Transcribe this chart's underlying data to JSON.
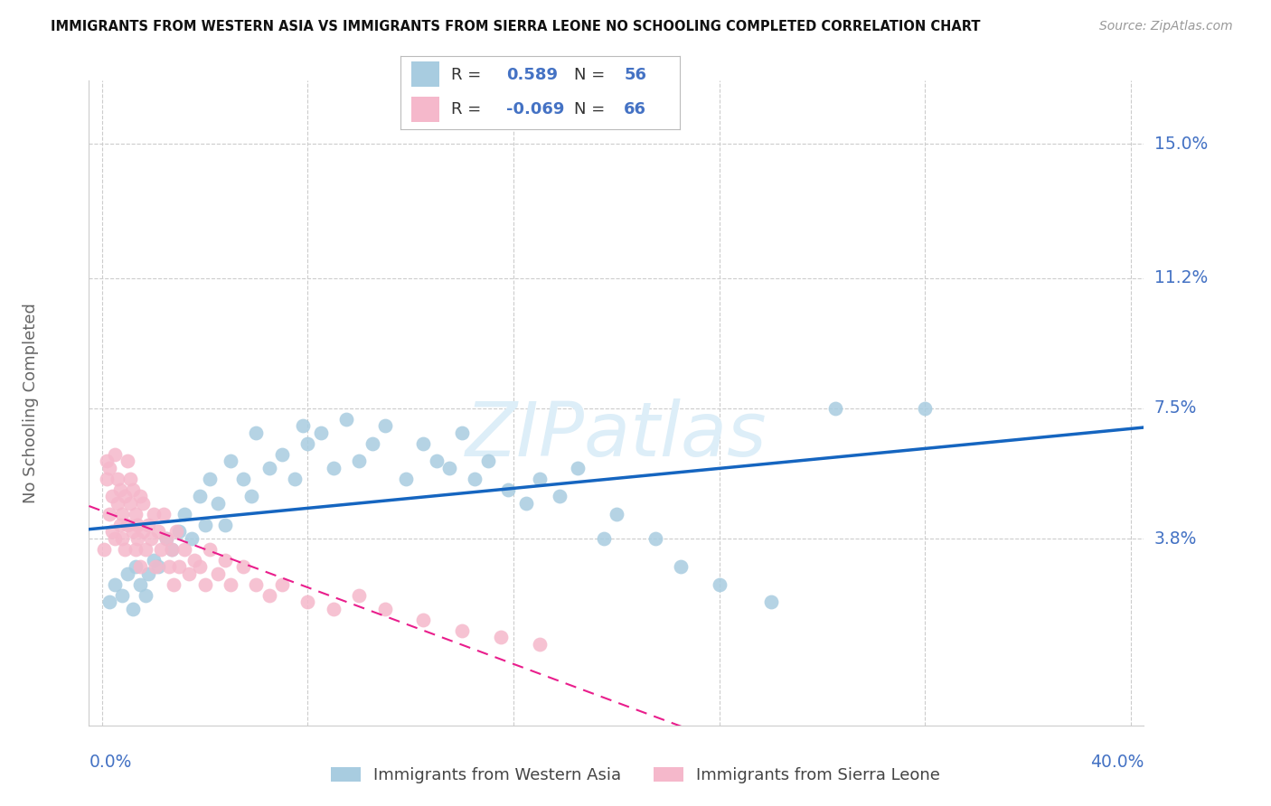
{
  "title": "IMMIGRANTS FROM WESTERN ASIA VS IMMIGRANTS FROM SIERRA LEONE NO SCHOOLING COMPLETED CORRELATION CHART",
  "source": "Source: ZipAtlas.com",
  "ylabel": "No Schooling Completed",
  "ytick_labels": [
    "15.0%",
    "11.2%",
    "7.5%",
    "3.8%"
  ],
  "ytick_values": [
    0.15,
    0.112,
    0.075,
    0.038
  ],
  "xlim": [
    0.0,
    0.4
  ],
  "ylim": [
    -0.015,
    0.168
  ],
  "color_blue": "#a8cce0",
  "color_pink": "#f5b8cb",
  "color_blue_line": "#1565c0",
  "color_pink_line": "#e91e8c",
  "color_grid": "#cccccc",
  "color_axis_label": "#4472c4",
  "color_ylabel": "#666666",
  "color_title": "#111111",
  "color_source": "#999999",
  "color_watermark": "#ddeef8",
  "legend_label1": "Immigrants from Western Asia",
  "legend_label2": "Immigrants from Sierra Leone",
  "legend_r1": "R =  0.589   N = 56",
  "legend_r2": "R = -0.069   N = 66",
  "wa_x": [
    0.003,
    0.005,
    0.008,
    0.01,
    0.012,
    0.013,
    0.015,
    0.017,
    0.018,
    0.02,
    0.022,
    0.025,
    0.027,
    0.03,
    0.032,
    0.035,
    0.038,
    0.04,
    0.042,
    0.045,
    0.048,
    0.05,
    0.055,
    0.058,
    0.06,
    0.065,
    0.07,
    0.075,
    0.078,
    0.08,
    0.085,
    0.09,
    0.095,
    0.1,
    0.105,
    0.11,
    0.118,
    0.125,
    0.13,
    0.135,
    0.14,
    0.145,
    0.15,
    0.158,
    0.165,
    0.17,
    0.178,
    0.185,
    0.195,
    0.2,
    0.215,
    0.225,
    0.24,
    0.26,
    0.285,
    0.32
  ],
  "wa_y": [
    0.02,
    0.025,
    0.022,
    0.028,
    0.018,
    0.03,
    0.025,
    0.022,
    0.028,
    0.032,
    0.03,
    0.038,
    0.035,
    0.04,
    0.045,
    0.038,
    0.05,
    0.042,
    0.055,
    0.048,
    0.042,
    0.06,
    0.055,
    0.05,
    0.068,
    0.058,
    0.062,
    0.055,
    0.07,
    0.065,
    0.068,
    0.058,
    0.072,
    0.06,
    0.065,
    0.07,
    0.055,
    0.065,
    0.06,
    0.058,
    0.068,
    0.055,
    0.06,
    0.052,
    0.048,
    0.055,
    0.05,
    0.058,
    0.038,
    0.045,
    0.038,
    0.03,
    0.025,
    0.02,
    0.075,
    0.075
  ],
  "sl_x": [
    0.001,
    0.002,
    0.002,
    0.003,
    0.003,
    0.004,
    0.004,
    0.005,
    0.005,
    0.006,
    0.006,
    0.007,
    0.007,
    0.008,
    0.008,
    0.009,
    0.009,
    0.01,
    0.01,
    0.011,
    0.011,
    0.012,
    0.012,
    0.013,
    0.013,
    0.014,
    0.014,
    0.015,
    0.015,
    0.016,
    0.016,
    0.017,
    0.018,
    0.019,
    0.02,
    0.021,
    0.022,
    0.023,
    0.024,
    0.025,
    0.026,
    0.027,
    0.028,
    0.029,
    0.03,
    0.032,
    0.034,
    0.036,
    0.038,
    0.04,
    0.042,
    0.045,
    0.048,
    0.05,
    0.055,
    0.06,
    0.065,
    0.07,
    0.08,
    0.09,
    0.1,
    0.11,
    0.125,
    0.14,
    0.155,
    0.17
  ],
  "sl_y": [
    0.035,
    0.055,
    0.06,
    0.045,
    0.058,
    0.04,
    0.05,
    0.062,
    0.038,
    0.048,
    0.055,
    0.042,
    0.052,
    0.038,
    0.045,
    0.05,
    0.035,
    0.06,
    0.042,
    0.055,
    0.048,
    0.04,
    0.052,
    0.035,
    0.045,
    0.038,
    0.042,
    0.05,
    0.03,
    0.04,
    0.048,
    0.035,
    0.042,
    0.038,
    0.045,
    0.03,
    0.04,
    0.035,
    0.045,
    0.038,
    0.03,
    0.035,
    0.025,
    0.04,
    0.03,
    0.035,
    0.028,
    0.032,
    0.03,
    0.025,
    0.035,
    0.028,
    0.032,
    0.025,
    0.03,
    0.025,
    0.022,
    0.025,
    0.02,
    0.018,
    0.022,
    0.018,
    0.015,
    0.012,
    0.01,
    0.008
  ]
}
